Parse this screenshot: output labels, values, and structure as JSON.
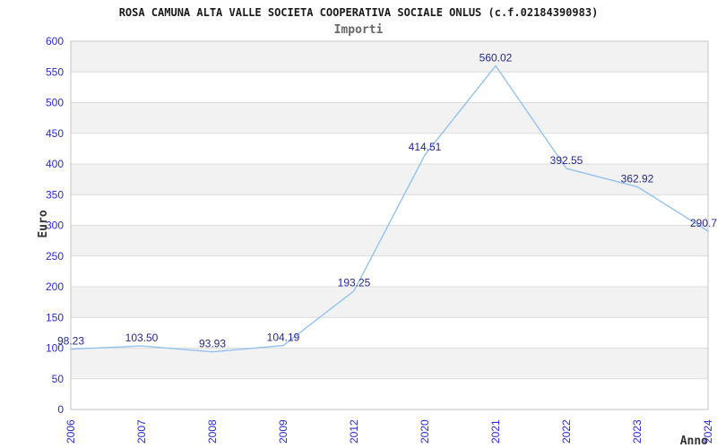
{
  "header": {
    "title": "ROSA CAMUNA ALTA VALLE SOCIETA COOPERATIVA SOCIALE ONLUS (c.f.02184390983)",
    "subtitle": "Importi"
  },
  "chart_data": {
    "type": "line",
    "title": "ROSA CAMUNA ALTA VALLE SOCIETA COOPERATIVA SOCIALE ONLUS (c.f.02184390983)",
    "subtitle": "Importi",
    "xlabel": "Anno",
    "ylabel": "Euro",
    "categories": [
      "2006",
      "2007",
      "2008",
      "2009",
      "2012",
      "2020",
      "2021",
      "2022",
      "2023",
      "2024"
    ],
    "values": [
      98.23,
      103.5,
      93.93,
      104.19,
      193.25,
      414.51,
      560.02,
      392.55,
      362.92,
      290.7
    ],
    "point_labels": [
      "98.23",
      "103.50",
      "93.93",
      "104.19",
      "193.25",
      "414.51",
      "560.02",
      "392.55",
      "362.92",
      "290.7"
    ],
    "ylim": [
      0,
      600
    ],
    "ytick_step": 50,
    "yticks": [
      0,
      50,
      100,
      150,
      200,
      250,
      300,
      350,
      400,
      450,
      500,
      550,
      600
    ],
    "x_spacing": "uniform",
    "grid": "horizontal gridlines with alternating shaded bands",
    "legend": "none",
    "colors": {
      "line": "#94c2ef",
      "point_label": "#26268c",
      "tick_label": "#2a2ad0",
      "axis_title": "#333333",
      "band": "#f2f2f2",
      "gridline": "#dcdcdc",
      "plot_border": "#c6c6c6",
      "title": "#1a1a1a",
      "subtitle": "#666666"
    }
  }
}
